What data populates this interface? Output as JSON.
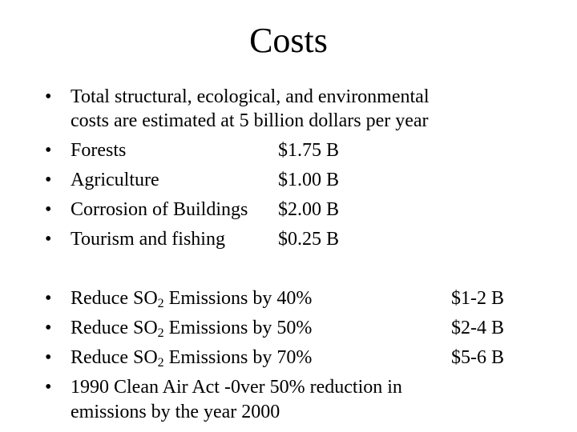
{
  "slide": {
    "title": "Costs",
    "bullet_glyph": "•",
    "costs_intro_line1": "Total structural, ecological, and environmental",
    "costs_intro_line2": "costs are estimated at 5 billion dollars per year",
    "cost_items": [
      {
        "label": "Forests",
        "value": "$1.75 B"
      },
      {
        "label": "Agriculture",
        "value": "$1.00 B"
      },
      {
        "label": "Corrosion of Buildings",
        "value": "$2.00 B"
      },
      {
        "label": "Tourism and fishing",
        "value": "$0.25 B"
      }
    ],
    "reduction_prefix": "Reduce SO",
    "reduction_subscript": "2",
    "reduction_items": [
      {
        "suffix": " Emissions by 40%",
        "value": "$1-2 B"
      },
      {
        "suffix": " Emissions by 50%",
        "value": "$2-4 B"
      },
      {
        "suffix": " Emissions by 70%",
        "value": "$5-6 B"
      }
    ],
    "clean_air_line1": "1990 Clean Air Act -0ver 50% reduction in",
    "clean_air_line2": "emissions by the year 2000"
  }
}
